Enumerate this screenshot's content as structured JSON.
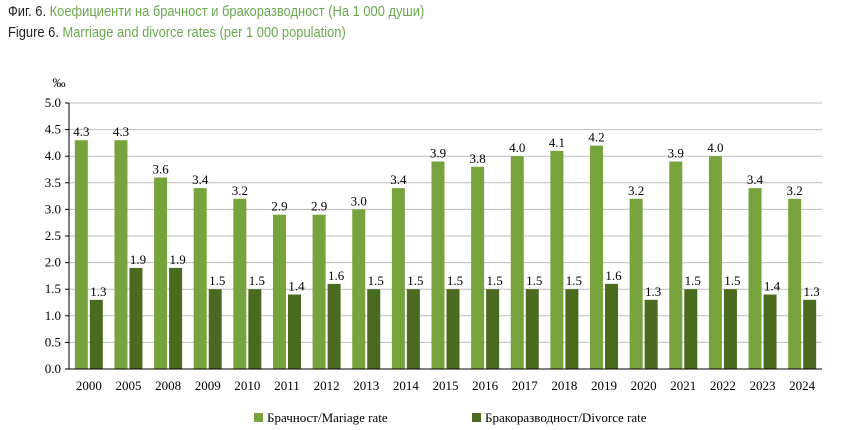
{
  "figure": {
    "bg_label": "Фиг. 6.",
    "bg_title": "Коефициенти на брачност и бракоразводност (На 1 000 души)",
    "en_label": "Figure 6.",
    "en_title": "Marriage and divorce rates (per 1 000 population)"
  },
  "chart_data": {
    "type": "bar",
    "title": "Marriage and divorce rates (per 1 000 population)",
    "ylabel": "‰",
    "xlabel": "",
    "ylim": [
      0,
      5
    ],
    "yticks": [
      "0.0",
      "0.5",
      "1.0",
      "1.5",
      "2.0",
      "2.5",
      "3.0",
      "3.5",
      "4.0",
      "4.5",
      "5.0"
    ],
    "grid": true,
    "legend_position": "bottom",
    "categories": [
      "2000",
      "2005",
      "2008",
      "2009",
      "2010",
      "2011",
      "2012",
      "2013",
      "2014",
      "2015",
      "2016",
      "2017",
      "2018",
      "2019",
      "2020",
      "2021",
      "2022",
      "2023",
      "2024"
    ],
    "series": [
      {
        "name": "Брачност/Mariage rate",
        "color": "#77a33c",
        "values": [
          4.3,
          4.3,
          3.6,
          3.4,
          3.2,
          2.9,
          2.9,
          3.0,
          3.4,
          3.9,
          3.8,
          4.0,
          4.1,
          4.2,
          3.2,
          3.9,
          4.0,
          3.4,
          3.2
        ],
        "labels": [
          "4.3",
          "4.3",
          "3.6",
          "3.4",
          "3.2",
          "2.9",
          "2.9",
          "3.0",
          "3.4",
          "3.9",
          "3.8",
          "4.0",
          "4.1",
          "4.2",
          "3.2",
          "3.9",
          "4.0",
          "3.4",
          "3.2"
        ]
      },
      {
        "name": "Бракоразводност/Divorce rate",
        "color": "#4a6a1f",
        "values": [
          1.3,
          1.9,
          1.9,
          1.5,
          1.5,
          1.4,
          1.6,
          1.5,
          1.5,
          1.5,
          1.5,
          1.5,
          1.5,
          1.6,
          1.3,
          1.5,
          1.5,
          1.4,
          1.3
        ],
        "labels": [
          "1.3",
          "1.9",
          "1.9",
          "1.5",
          "1.5",
          "1.4",
          "1.6",
          "1.5",
          "1.5",
          "1.5",
          "1.5",
          "1.5",
          "1.5",
          "1.6",
          "1.3",
          "1.5",
          "1.5",
          "1.4",
          "1.3"
        ]
      }
    ]
  }
}
